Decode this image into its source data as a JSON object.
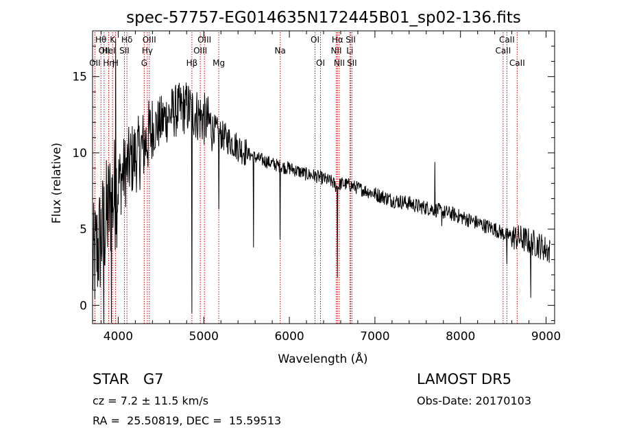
{
  "chart_data": {
    "type": "line",
    "title": "spec-57757-EG014635N172445B01_sp02-136.fits",
    "xlabel": "Wavelength (Å)",
    "ylabel": "Flux (relative)",
    "xlim": [
      3700,
      9100
    ],
    "ylim": [
      -1.2,
      18.0
    ],
    "x_ticks": [
      4000,
      5000,
      6000,
      7000,
      8000,
      9000
    ],
    "y_ticks": [
      0,
      5,
      10,
      15
    ],
    "grid": false,
    "line_color": "#000000",
    "marker_color": "#cc0000",
    "series": [
      {
        "x": [
          3700,
          3750,
          3800,
          3850,
          3900,
          3950,
          4000,
          4050,
          4100,
          4150,
          4200,
          4250,
          4300,
          4350,
          4400,
          4450,
          4500,
          4550,
          4600,
          4650,
          4700,
          4750,
          4800,
          4850,
          4900,
          4950,
          5000,
          5050,
          5100,
          5150,
          5200,
          5300,
          5400,
          5500,
          5600,
          5700,
          5800,
          5900,
          6000,
          6100,
          6200,
          6300,
          6400,
          6500,
          6560,
          6600,
          6700,
          6800,
          6900,
          7000,
          7100,
          7200,
          7300,
          7400,
          7500,
          7600,
          7700,
          7800,
          7900,
          8000,
          8100,
          8200,
          8300,
          8400,
          8500,
          8600,
          8700,
          8800,
          8900,
          9000,
          9050
        ],
        "values": [
          2.5,
          3.5,
          4.5,
          5.5,
          6.5,
          7.2,
          8.0,
          8.5,
          9.0,
          9.5,
          9.8,
          10.0,
          10.5,
          11.0,
          11.5,
          11.8,
          12.0,
          12.3,
          12.5,
          12.7,
          12.8,
          12.9,
          13.0,
          12.8,
          12.6,
          12.4,
          12.2,
          12.0,
          11.7,
          11.4,
          11.2,
          10.8,
          10.4,
          10.0,
          9.7,
          9.5,
          9.3,
          9.1,
          9.0,
          8.8,
          8.6,
          8.5,
          8.3,
          8.1,
          7.7,
          8.0,
          7.9,
          7.7,
          7.5,
          7.3,
          7.1,
          6.9,
          6.8,
          6.7,
          6.5,
          6.4,
          6.3,
          6.1,
          6.0,
          5.8,
          5.6,
          5.4,
          5.2,
          5.0,
          4.7,
          4.5,
          4.4,
          4.2,
          4.0,
          3.7,
          3.5
        ]
      }
    ],
    "features": [
      {
        "x": 4860,
        "y": -0.5
      },
      {
        "x": 5175,
        "y": 6.3
      },
      {
        "x": 5580,
        "y": 3.8
      },
      {
        "x": 5893,
        "y": 4.3
      },
      {
        "x": 6563,
        "y": 1.8
      },
      {
        "x": 7700,
        "y": 9.4
      },
      {
        "x": 7780,
        "y": 5.2
      },
      {
        "x": 8540,
        "y": 2.7
      },
      {
        "x": 8820,
        "y": 9.6
      },
      {
        "x": 8820,
        "y": 0.5
      },
      {
        "x": 3830,
        "y": -1.2
      },
      {
        "x": 3920,
        "y": -1.2
      },
      {
        "x": 3970,
        "y": 17.5
      }
    ],
    "line_markers": [
      {
        "x": 3727,
        "label": "OII",
        "row": 3
      },
      {
        "x": 3798,
        "label": "Hθ",
        "row": 1
      },
      {
        "x": 3835,
        "label": "OII",
        "row": 2
      },
      {
        "x": 3889,
        "label": "HeI",
        "row": 2
      },
      {
        "x": 3934,
        "label": "K",
        "row": 1
      },
      {
        "x": 3889,
        "label": "Hη",
        "row": 3
      },
      {
        "x": 3968,
        "label": "H",
        "row": 3
      },
      {
        "x": 4072,
        "label": "SII",
        "row": 2
      },
      {
        "x": 4102,
        "label": "Hδ",
        "row": 1
      },
      {
        "x": 4304,
        "label": "G",
        "row": 3
      },
      {
        "x": 4340,
        "label": "Hγ",
        "row": 2
      },
      {
        "x": 4363,
        "label": "OIII",
        "row": 1
      },
      {
        "x": 4861,
        "label": "Hβ",
        "row": 3
      },
      {
        "x": 4959,
        "label": "OIII",
        "row": 2
      },
      {
        "x": 5007,
        "label": "OIII",
        "row": 1
      },
      {
        "x": 5175,
        "label": "Mg",
        "row": 3
      },
      {
        "x": 5893,
        "label": "Na",
        "row": 2
      },
      {
        "x": 6300,
        "label": "OI",
        "row": 1
      },
      {
        "x": 6364,
        "label": "OI",
        "row": 3
      },
      {
        "x": 6548,
        "label": "NII",
        "row": 2
      },
      {
        "x": 6563,
        "label": "Hα",
        "row": 1
      },
      {
        "x": 6584,
        "label": "NII",
        "row": 3
      },
      {
        "x": 6707,
        "label": "Li",
        "row": 2
      },
      {
        "x": 6717,
        "label": "SII",
        "row": 1
      },
      {
        "x": 6731,
        "label": "SII",
        "row": 3
      },
      {
        "x": 8498,
        "label": "CaII",
        "row": 2
      },
      {
        "x": 8542,
        "label": "CaII",
        "row": 1
      },
      {
        "x": 8662,
        "label": "CaII",
        "row": 3
      }
    ]
  },
  "info": {
    "class_label": "STAR",
    "subclass_label": "G7",
    "survey_label": "LAMOST DR5",
    "redshift_text": "cz = 7.2 ± 11.5 km/s",
    "obs_date_text": "Obs-Date: 20170103",
    "coords_text": "RA =  25.50819, DEC =  15.59513"
  }
}
